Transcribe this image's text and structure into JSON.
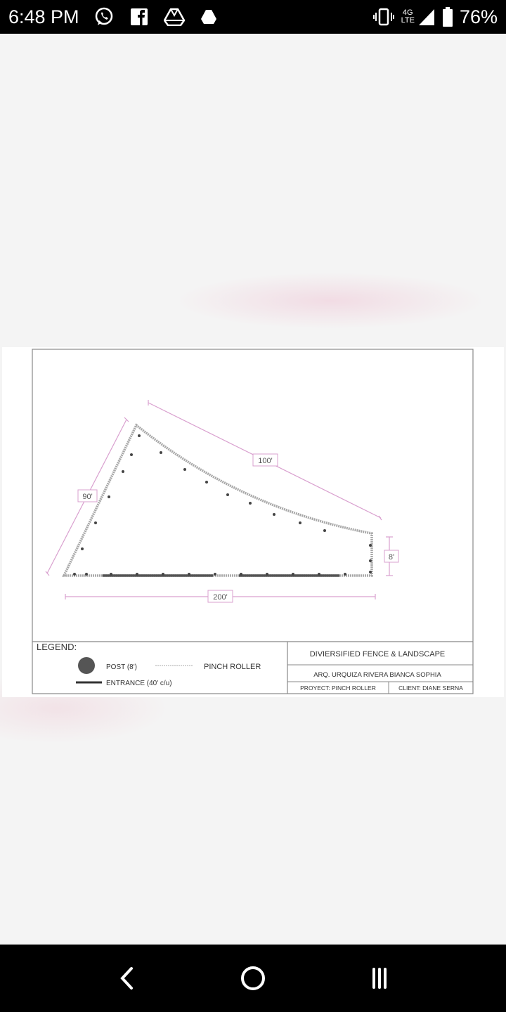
{
  "status_bar": {
    "time": "6:48 PM",
    "network": "4G LTE",
    "network_top": "4G",
    "network_bottom": "LTE",
    "battery": "76%",
    "icons": [
      "whatsapp-icon",
      "facebook-icon",
      "drive-icon",
      "drive-filled-icon",
      "vibrate-icon",
      "signal-icon",
      "battery-icon"
    ]
  },
  "drawing": {
    "dimensions": {
      "side_left": "90'",
      "side_top": "100'",
      "side_right": "8'",
      "side_bottom": "200'"
    },
    "legend": {
      "title": "LEGEND:",
      "post": "POST (8')",
      "entrance": "ENTRANCE (40' c/u)",
      "pinch_roller": "PINCH ROLLER"
    },
    "title_block": {
      "company": "DIVIERSIFIED FENCE & LANDSCAPE",
      "architect": "ARQ. URQUIZA RIVERA BIANCA SOPHIA",
      "project": "PROYECT: PINCH ROLLER",
      "client": "CLIENT: DIANE SERNA"
    },
    "colors": {
      "dimension_line": "#d9a0cf",
      "fence_line": "#999999",
      "entrance": "#555555",
      "post": "#444444"
    }
  },
  "nav_bar": {
    "icons": [
      "back-icon",
      "home-icon",
      "recents-icon"
    ]
  }
}
